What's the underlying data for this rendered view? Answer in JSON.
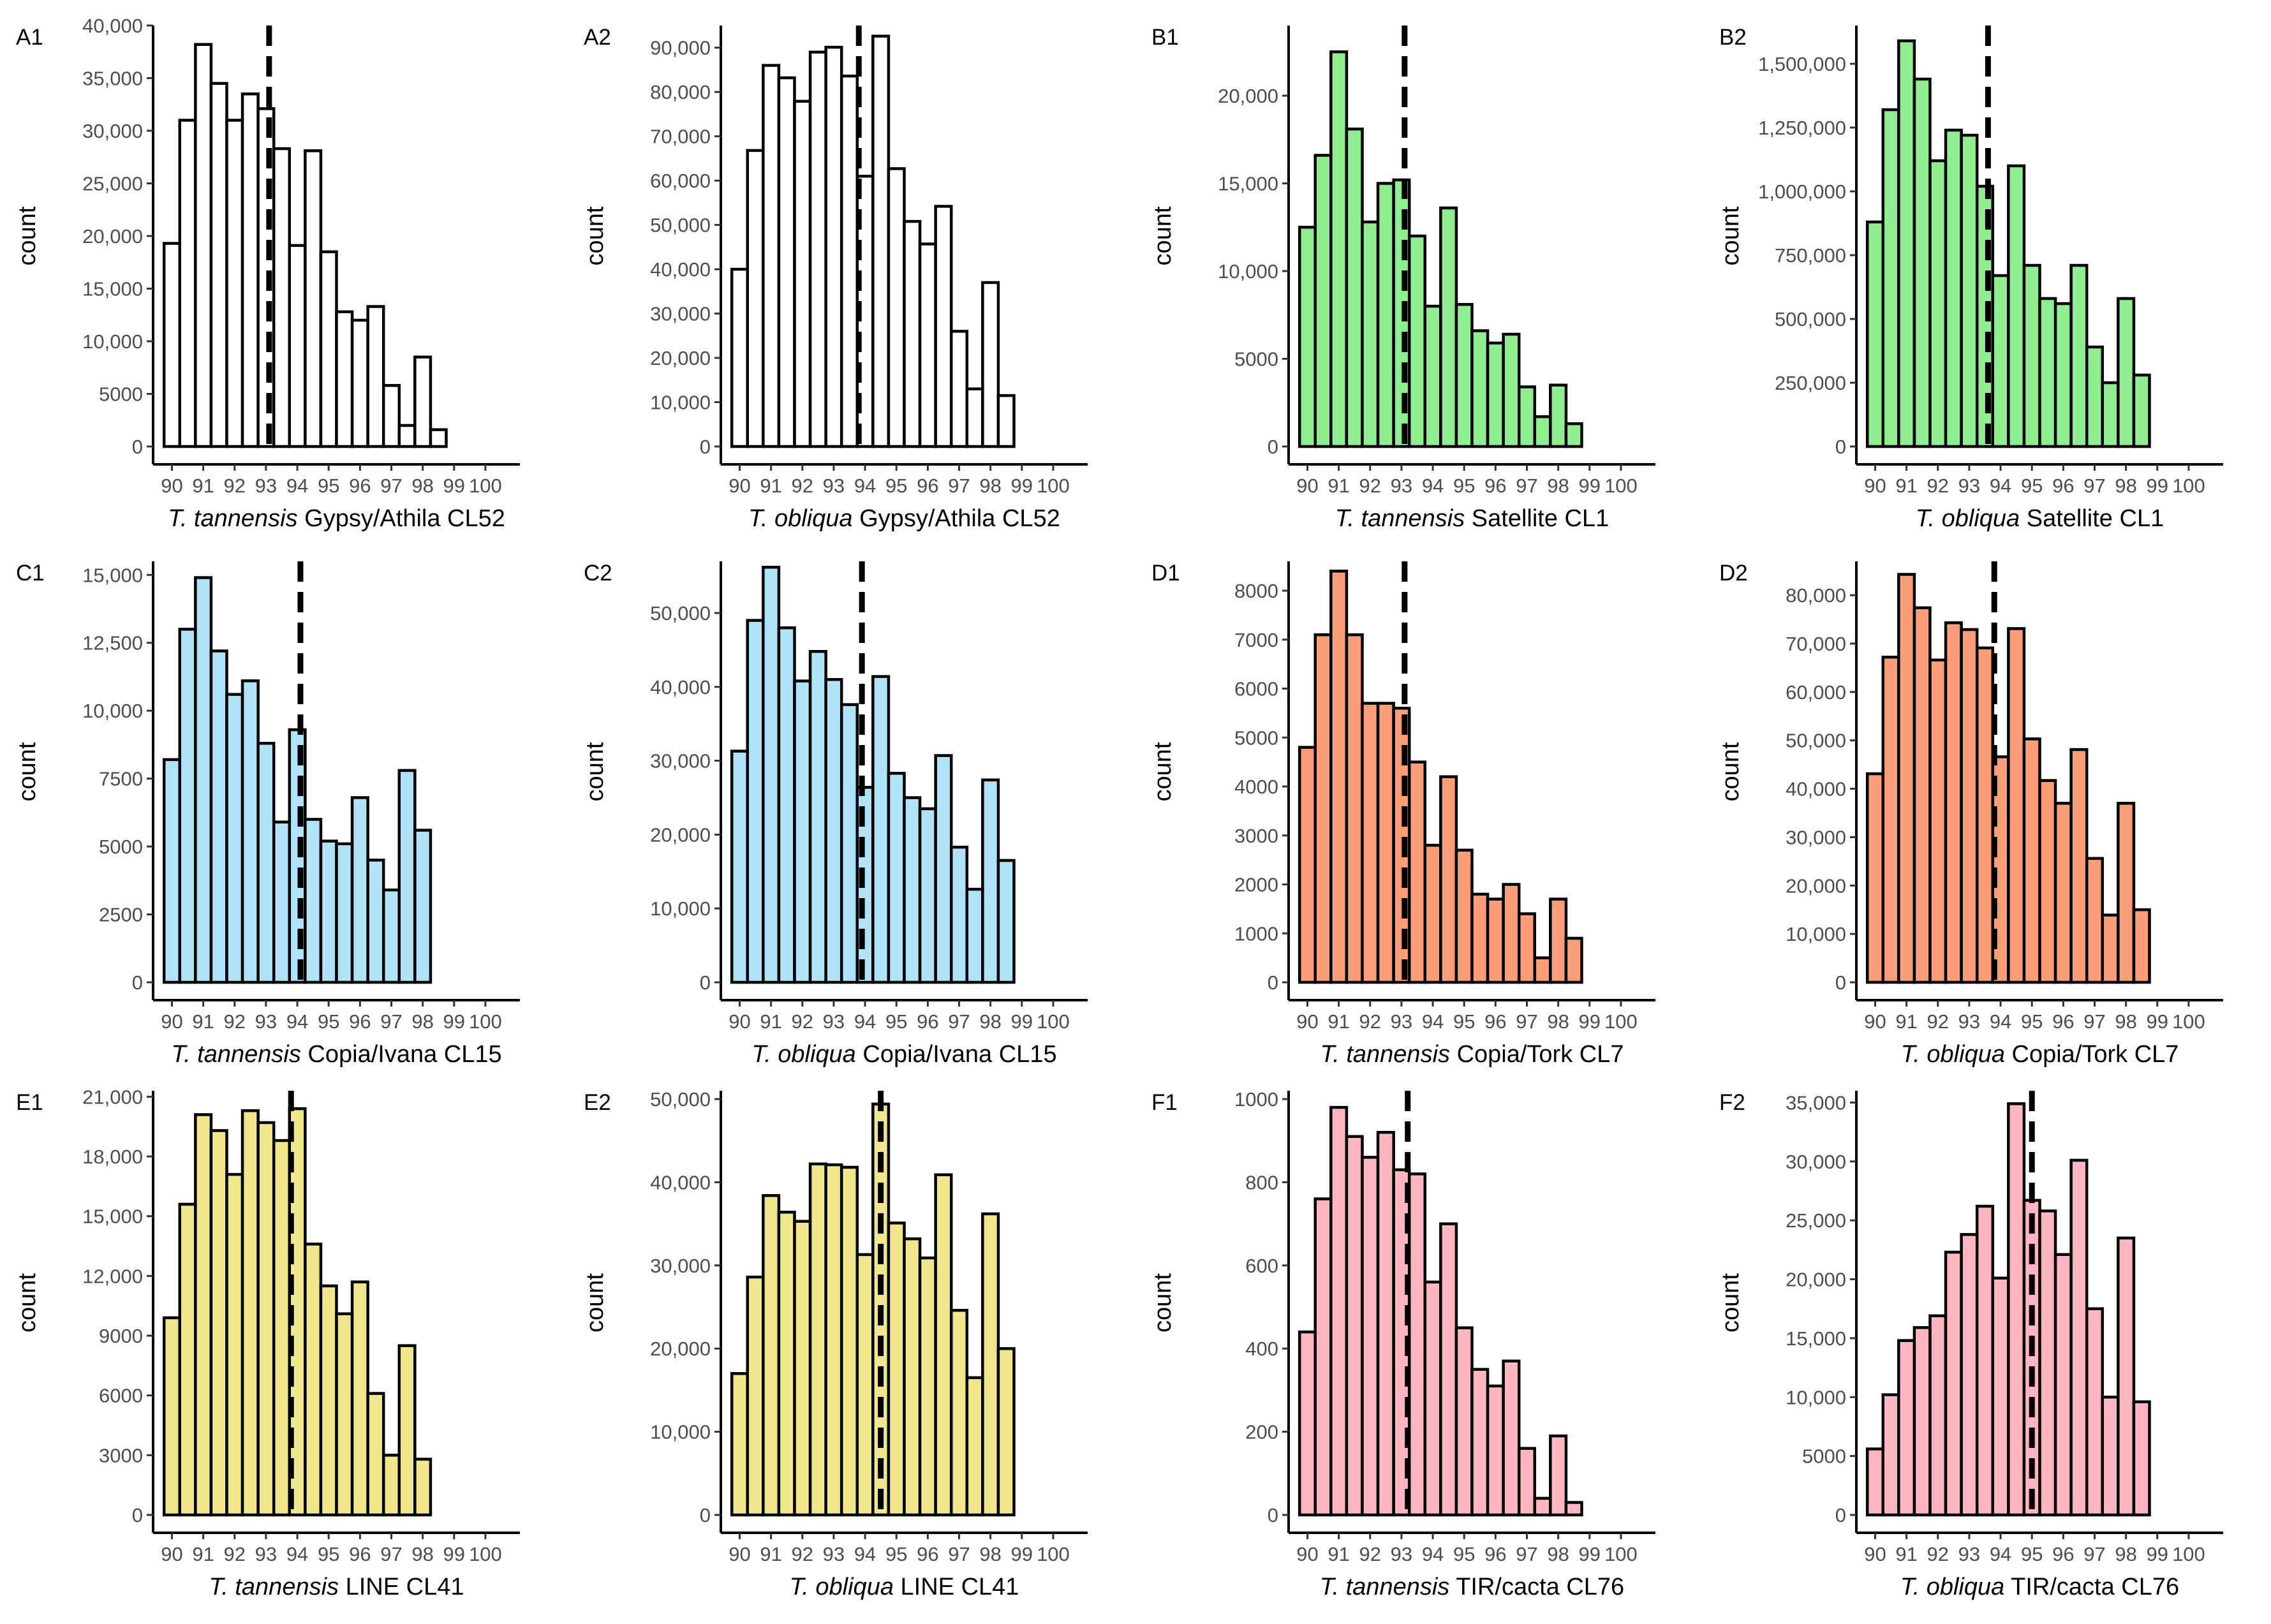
{
  "figure": {
    "y_axis_title": "count",
    "x_ticks": [
      "90",
      "91",
      "92",
      "93",
      "94",
      "95",
      "96",
      "97",
      "98",
      "99",
      "100"
    ]
  },
  "chart_data": [
    {
      "id": "A1",
      "type": "bar",
      "color": "#ffffff",
      "species": "T. tannensis",
      "title_rest": "Gypsy/Athila CL52",
      "ylim": [
        0,
        40000
      ],
      "yticks": [
        "0",
        "5000",
        "10,000",
        "15,000",
        "20,000",
        "25,000",
        "30,000",
        "35,000",
        "40,000"
      ],
      "ytick_values": [
        0,
        5000,
        10000,
        15000,
        20000,
        25000,
        30000,
        35000,
        40000
      ],
      "dashed_line_x": 93.1,
      "bins_start": 89.75,
      "bin_width": 0.5,
      "values": [
        19300,
        31000,
        38200,
        34500,
        31000,
        33500,
        32100,
        28300,
        19100,
        28100,
        18500,
        12800,
        12000,
        13300,
        5800,
        2000,
        8500,
        1600
      ]
    },
    {
      "id": "A2",
      "type": "bar",
      "color": "#ffffff",
      "species": "T. obliqua",
      "title_rest": "Gypsy/Athila CL52",
      "ylim": [
        0,
        95000
      ],
      "yticks": [
        "0",
        "10,000",
        "20,000",
        "30,000",
        "40,000",
        "50,000",
        "60,000",
        "70,000",
        "80,000",
        "90,000"
      ],
      "ytick_values": [
        0,
        10000,
        20000,
        30000,
        40000,
        50000,
        60000,
        70000,
        80000,
        90000
      ],
      "dashed_line_x": 93.8,
      "bins_start": 89.75,
      "bin_width": 0.5,
      "values": [
        40000,
        66800,
        86000,
        83200,
        77900,
        89000,
        90100,
        83600,
        61000,
        92600,
        62700,
        50800,
        45700,
        54200,
        26000,
        13000,
        37000,
        11500
      ]
    },
    {
      "id": "B1",
      "type": "bar",
      "color": "#90ee90",
      "species": "T. tannensis",
      "title_rest": "Satellite CL1",
      "ylim": [
        0,
        24000
      ],
      "yticks": [
        "0",
        "5000",
        "10,000",
        "15,000",
        "20,000"
      ],
      "ytick_values": [
        0,
        5000,
        10000,
        15000,
        20000
      ],
      "dashed_line_x": 93.1,
      "bins_start": 89.75,
      "bin_width": 0.5,
      "values": [
        12500,
        16600,
        22500,
        18100,
        12800,
        15000,
        15200,
        12000,
        8000,
        13600,
        8100,
        6600,
        5900,
        6400,
        3400,
        1700,
        3500,
        1300
      ]
    },
    {
      "id": "B2",
      "type": "bar",
      "color": "#90ee90",
      "species": "T. obliqua",
      "title_rest": "Satellite  CL1",
      "ylim": [
        0,
        1650000
      ],
      "yticks": [
        "0",
        "250,000",
        "500,000",
        "750,000",
        "1,000,000",
        "1,250,000",
        "1,500,000"
      ],
      "ytick_values": [
        0,
        250000,
        500000,
        750000,
        1000000,
        1250000,
        1500000
      ],
      "dashed_line_x": 93.6,
      "bins_start": 89.75,
      "bin_width": 0.5,
      "values": [
        880000,
        1320000,
        1590000,
        1440000,
        1120000,
        1240000,
        1220000,
        1020000,
        670000,
        1100000,
        710000,
        580000,
        560000,
        710000,
        390000,
        250000,
        580000,
        280000
      ]
    },
    {
      "id": "C1",
      "type": "bar",
      "color": "#b0e2f8",
      "species": "T. tannensis",
      "title_rest": "Copia/Ivana CL15",
      "ylim": [
        0,
        15500
      ],
      "yticks": [
        "0",
        "2500",
        "5000",
        "7500",
        "10,000",
        "12,500",
        "15,000"
      ],
      "ytick_values": [
        0,
        2500,
        5000,
        7500,
        10000,
        12500,
        15000
      ],
      "dashed_line_x": 94.1,
      "bins_start": 89.75,
      "bin_width": 0.5,
      "values": [
        8200,
        13000,
        14900,
        12200,
        10600,
        11100,
        8800,
        5900,
        9300,
        6000,
        5200,
        5100,
        6800,
        4500,
        3400,
        7800,
        5600
      ]
    },
    {
      "id": "C2",
      "type": "bar",
      "color": "#b0e2f8",
      "species": "T. obliqua",
      "title_rest": "Copia/Ivana CL15",
      "ylim": [
        0,
        57000
      ],
      "yticks": [
        "0",
        "10,000",
        "20,000",
        "30,000",
        "40,000",
        "50,000"
      ],
      "ytick_values": [
        0,
        10000,
        20000,
        30000,
        40000,
        50000
      ],
      "dashed_line_x": 93.9,
      "bins_start": 89.75,
      "bin_width": 0.5,
      "values": [
        31300,
        49000,
        56200,
        48000,
        40800,
        44800,
        41000,
        37600,
        26400,
        41400,
        28300,
        25000,
        23500,
        30700,
        18300,
        12600,
        27400,
        16500
      ]
    },
    {
      "id": "D1",
      "type": "bar",
      "color": "#f99e78",
      "species": "T. tannensis",
      "title_rest": "Copia/Tork CL7",
      "ylim": [
        0,
        8600
      ],
      "yticks": [
        "0",
        "1000",
        "2000",
        "3000",
        "4000",
        "5000",
        "6000",
        "7000",
        "8000"
      ],
      "ytick_values": [
        0,
        1000,
        2000,
        3000,
        4000,
        5000,
        6000,
        7000,
        8000
      ],
      "dashed_line_x": 93.1,
      "bins_start": 89.75,
      "bin_width": 0.5,
      "values": [
        4800,
        7100,
        8400,
        7100,
        5700,
        5700,
        5600,
        4500,
        2800,
        4200,
        2700,
        1800,
        1700,
        2000,
        1400,
        500,
        1700,
        900
      ]
    },
    {
      "id": "D2",
      "type": "bar",
      "color": "#f99e78",
      "species": "T. obliqua",
      "title_rest": "Copia/Tork CL7",
      "ylim": [
        0,
        87000
      ],
      "yticks": [
        "0",
        "10,000",
        "20,000",
        "30,000",
        "40,000",
        "50,000",
        "60,000",
        "70,000",
        "80,000"
      ],
      "ytick_values": [
        0,
        10000,
        20000,
        30000,
        40000,
        50000,
        60000,
        70000,
        80000
      ],
      "dashed_line_x": 93.8,
      "bins_start": 89.75,
      "bin_width": 0.5,
      "values": [
        43100,
        67200,
        84300,
        77400,
        66600,
        74300,
        72900,
        69100,
        46600,
        73100,
        50300,
        41700,
        37000,
        48100,
        25600,
        13900,
        37000,
        15000
      ]
    },
    {
      "id": "E1",
      "type": "bar",
      "color": "#f0e68c",
      "species": "T. tannensis",
      "title_rest": "LINE CL41",
      "ylim": [
        0,
        21300
      ],
      "yticks": [
        "0",
        "3000",
        "6000",
        "9000",
        "12,000",
        "15,000",
        "18,000",
        "21,000"
      ],
      "ytick_values": [
        0,
        3000,
        6000,
        9000,
        12000,
        15000,
        18000,
        21000
      ],
      "dashed_line_x": 93.8,
      "bins_start": 89.75,
      "bin_width": 0.5,
      "values": [
        9900,
        15600,
        20100,
        19300,
        17100,
        20300,
        19700,
        18800,
        20400,
        13600,
        11500,
        10100,
        11700,
        6100,
        3000,
        8500,
        2800
      ]
    },
    {
      "id": "E2",
      "type": "bar",
      "color": "#f0e68c",
      "species": "T. obliqua",
      "title_rest": "LINE CL41",
      "ylim": [
        0,
        51000
      ],
      "yticks": [
        "0",
        "10,000",
        "20,000",
        "30,000",
        "40,000",
        "50,000"
      ],
      "ytick_values": [
        0,
        10000,
        20000,
        30000,
        40000,
        50000
      ],
      "dashed_line_x": 94.5,
      "bins_start": 89.75,
      "bin_width": 0.5,
      "values": [
        17000,
        28600,
        38400,
        36400,
        35300,
        42200,
        42100,
        41800,
        31300,
        49400,
        35100,
        33200,
        30900,
        40900,
        24600,
        16500,
        36200,
        20000
      ]
    },
    {
      "id": "F1",
      "type": "bar",
      "color": "#ffb6c1",
      "species": "T. tannensis",
      "title_rest": "TIR/cacta CL76",
      "ylim": [
        0,
        1020
      ],
      "yticks": [
        "0",
        "200",
        "400",
        "600",
        "800",
        "1000"
      ],
      "ytick_values": [
        0,
        200,
        400,
        600,
        800,
        1000
      ],
      "dashed_line_x": 93.2,
      "bins_start": 89.75,
      "bin_width": 0.5,
      "values": [
        440,
        760,
        980,
        910,
        860,
        920,
        830,
        820,
        560,
        700,
        450,
        350,
        310,
        370,
        160,
        40,
        190,
        30
      ]
    },
    {
      "id": "F2",
      "type": "bar",
      "color": "#ffb6c1",
      "species": "T. obliqua",
      "title_rest": "TIR/cacta CL76",
      "ylim": [
        0,
        36000
      ],
      "yticks": [
        "0",
        "5000",
        "10,000",
        "15,000",
        "20,000",
        "25,000",
        "30,000",
        "35,000"
      ],
      "ytick_values": [
        0,
        5000,
        10000,
        15000,
        20000,
        25000,
        30000,
        35000
      ],
      "dashed_line_x": 95.0,
      "bins_start": 89.75,
      "bin_width": 0.5,
      "values": [
        5600,
        10200,
        14800,
        15900,
        16900,
        22300,
        23800,
        26200,
        20100,
        34900,
        26700,
        25800,
        22100,
        30100,
        17500,
        10000,
        23500,
        9600
      ]
    }
  ]
}
